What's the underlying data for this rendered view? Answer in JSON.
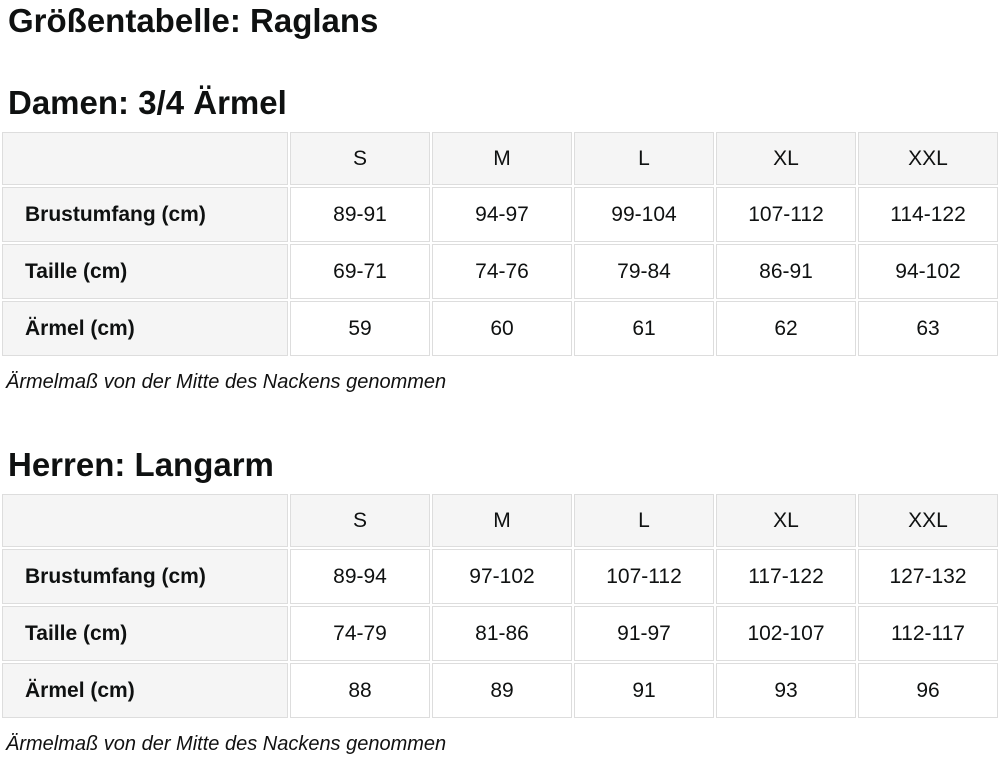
{
  "page": {
    "title": "Größentabelle: Raglans"
  },
  "colors": {
    "text": "#0f1111",
    "header_cell_bg": "#f5f5f5",
    "cell_border": "#dddddd",
    "data_cell_bg": "#ffffff"
  },
  "tables": [
    {
      "title": "Damen: 3/4 Ärmel",
      "columns": [
        "S",
        "M",
        "L",
        "XL",
        "XXL"
      ],
      "rows": [
        {
          "label": "Brustumfang (cm)",
          "values": [
            "89-91",
            "94-97",
            "99-104",
            "107-112",
            "114-122"
          ]
        },
        {
          "label": "Taille (cm)",
          "values": [
            "69-71",
            "74-76",
            "79-84",
            "86-91",
            "94-102"
          ]
        },
        {
          "label": "Ärmel (cm)",
          "values": [
            "59",
            "60",
            "61",
            "62",
            "63"
          ]
        }
      ],
      "footnote": "Ärmelmaß von der Mitte des Nackens genommen"
    },
    {
      "title": "Herren: Langarm",
      "columns": [
        "S",
        "M",
        "L",
        "XL",
        "XXL"
      ],
      "rows": [
        {
          "label": "Brustumfang (cm)",
          "values": [
            "89-94",
            "97-102",
            "107-112",
            "117-122",
            "127-132"
          ]
        },
        {
          "label": "Taille (cm)",
          "values": [
            "74-79",
            "81-86",
            "91-97",
            "102-107",
            "112-117"
          ]
        },
        {
          "label": "Ärmel (cm)",
          "values": [
            "88",
            "89",
            "91",
            "93",
            "96"
          ]
        }
      ],
      "footnote": "Ärmelmaß von der Mitte des Nackens genommen"
    }
  ]
}
